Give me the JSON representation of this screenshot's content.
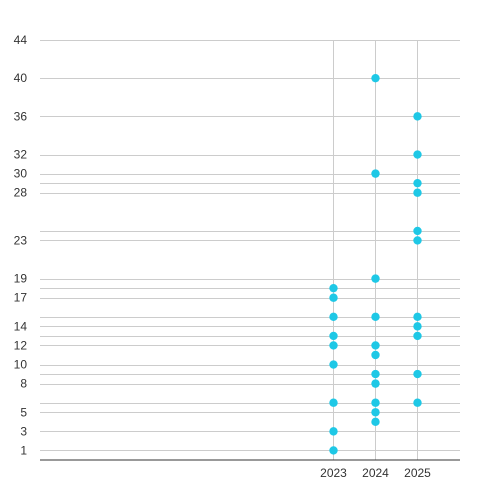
{
  "chart_data": {
    "type": "scatter",
    "title": "",
    "xlabel": "",
    "ylabel": "",
    "x_categories": [
      "2023",
      "2024",
      "2025"
    ],
    "y_tick_labels": [
      1,
      3,
      5,
      8,
      10,
      12,
      14,
      17,
      19,
      23,
      28,
      30,
      32,
      36,
      40,
      44
    ],
    "y_gridlines": [
      1,
      3,
      5,
      6,
      8,
      9,
      10,
      12,
      13,
      14,
      15,
      17,
      18,
      19,
      23,
      24,
      28,
      29,
      30,
      32,
      36,
      40,
      44
    ],
    "ylim": [
      0,
      44
    ],
    "grid": true,
    "marker_color": "#1ec8e6",
    "points": [
      {
        "x": "2023",
        "y": 1
      },
      {
        "x": "2023",
        "y": 3
      },
      {
        "x": "2023",
        "y": 6
      },
      {
        "x": "2023",
        "y": 10
      },
      {
        "x": "2023",
        "y": 12
      },
      {
        "x": "2023",
        "y": 13
      },
      {
        "x": "2023",
        "y": 15
      },
      {
        "x": "2023",
        "y": 17
      },
      {
        "x": "2023",
        "y": 18
      },
      {
        "x": "2024",
        "y": 4
      },
      {
        "x": "2024",
        "y": 5
      },
      {
        "x": "2024",
        "y": 6
      },
      {
        "x": "2024",
        "y": 8
      },
      {
        "x": "2024",
        "y": 9
      },
      {
        "x": "2024",
        "y": 11
      },
      {
        "x": "2024",
        "y": 12
      },
      {
        "x": "2024",
        "y": 15
      },
      {
        "x": "2024",
        "y": 19
      },
      {
        "x": "2024",
        "y": 30
      },
      {
        "x": "2024",
        "y": 40
      },
      {
        "x": "2025",
        "y": 6
      },
      {
        "x": "2025",
        "y": 9
      },
      {
        "x": "2025",
        "y": 13
      },
      {
        "x": "2025",
        "y": 14
      },
      {
        "x": "2025",
        "y": 15
      },
      {
        "x": "2025",
        "y": 23
      },
      {
        "x": "2025",
        "y": 24
      },
      {
        "x": "2025",
        "y": 28
      },
      {
        "x": "2025",
        "y": 29
      },
      {
        "x": "2025",
        "y": 32
      },
      {
        "x": "2025",
        "y": 36
      }
    ]
  }
}
